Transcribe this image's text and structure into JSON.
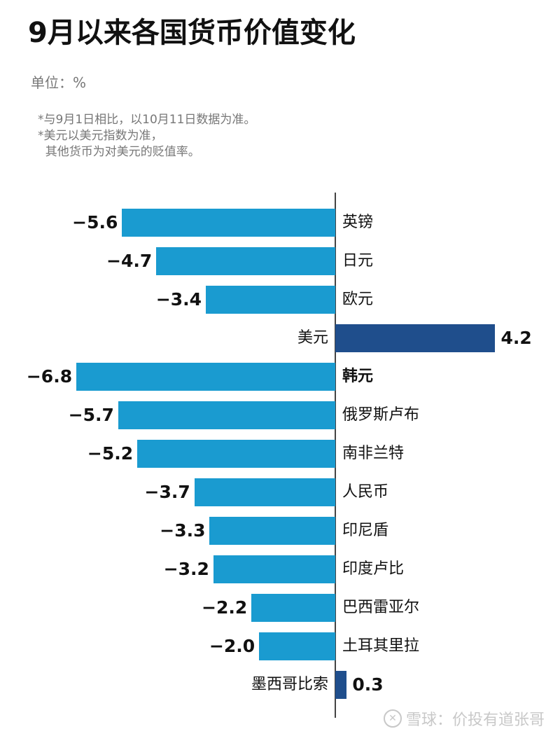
{
  "title": "9月以来各国货币价值变化",
  "unit": "单位：%",
  "notes": [
    "*与9月1日相比，以10月11日数据为准。",
    "*美元以美元指数为准，",
    "  其他货币为对美元的贬值率。"
  ],
  "colors": {
    "negative_bar": "#1a9bd0",
    "positive_bar": "#1f4e8c",
    "axis": "#444444"
  },
  "watermark": {
    "icon": "snowball-logo-icon",
    "text": "雪球：价投有道张哥"
  },
  "chart_data": {
    "type": "bar",
    "orientation": "horizontal",
    "title": "9月以来各国货币价值变化",
    "xlabel": "",
    "ylabel": "",
    "unit": "%",
    "xlim": [
      -6.8,
      4.2
    ],
    "grid": false,
    "legend": null,
    "categories": [
      "英镑",
      "日元",
      "欧元",
      "美元",
      "韩元",
      "俄罗斯卢布",
      "南非兰特",
      "人民币",
      "印尼盾",
      "印度卢比",
      "巴西雷亚尔",
      "土耳其里拉",
      "墨西哥比索"
    ],
    "values": [
      -5.6,
      -4.7,
      -3.4,
      4.2,
      -6.8,
      -5.7,
      -5.2,
      -3.7,
      -3.3,
      -3.2,
      -2.2,
      -2.0,
      0.3
    ],
    "value_labels": [
      "-5.6",
      "-4.7",
      "-3.4",
      "4.2",
      "-6.8",
      "-5.7",
      "-5.2",
      "-3.7",
      "-3.3",
      "-3.2",
      "-2.2",
      "-2.0",
      "0.3"
    ],
    "highlighted": [
      "韩元"
    ],
    "annotations": [
      "*与9月1日相比，以10月11日数据为准。",
      "*美元以美元指数为准，其他货币为对美元的贬值率。"
    ]
  }
}
